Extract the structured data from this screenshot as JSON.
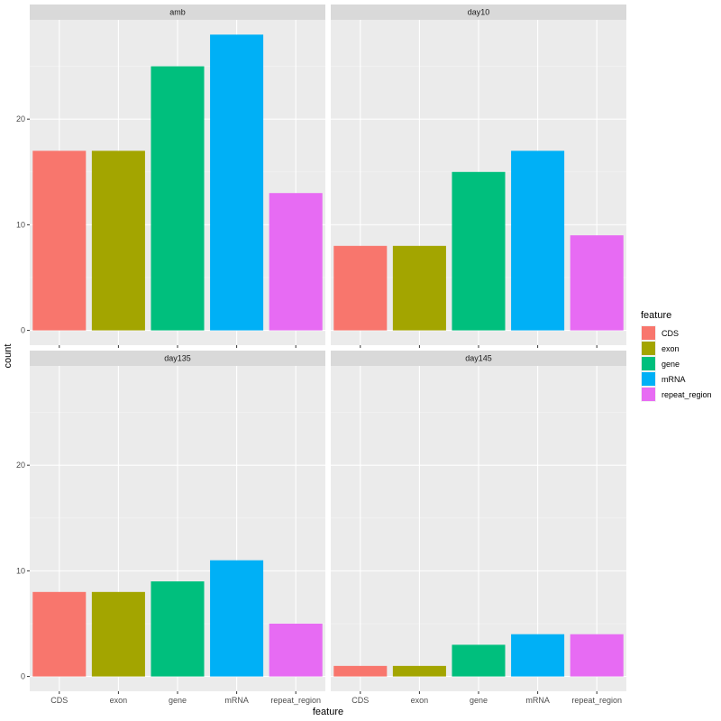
{
  "chart_data": {
    "type": "bar",
    "facet_by": "dataset",
    "categories": [
      "CDS",
      "exon",
      "gene",
      "mRNA",
      "repeat_region"
    ],
    "colors": {
      "CDS": "#F8766D",
      "exon": "#A3A500",
      "gene": "#00BF7D",
      "mRNA": "#00B0F6",
      "repeat_region": "#E76BF3"
    },
    "panels": [
      {
        "strip": "amb",
        "values": [
          17,
          17,
          25,
          28,
          13
        ]
      },
      {
        "strip": "day10",
        "values": [
          8,
          8,
          15,
          17,
          9
        ]
      },
      {
        "strip": "day135",
        "values": [
          8,
          8,
          9,
          11,
          5
        ]
      },
      {
        "strip": "day145",
        "values": [
          1,
          1,
          3,
          4,
          4
        ]
      }
    ],
    "xlabel": "feature",
    "ylabel": "count",
    "ylim": [
      -1.4,
      29.4
    ],
    "y_ticks": [
      0,
      10,
      20
    ],
    "y_minor_ticks": [
      5,
      15,
      25
    ],
    "grid": true,
    "legend": {
      "title": "feature",
      "position": "right",
      "entries": [
        "CDS",
        "exon",
        "gene",
        "mRNA",
        "repeat_region"
      ]
    }
  }
}
